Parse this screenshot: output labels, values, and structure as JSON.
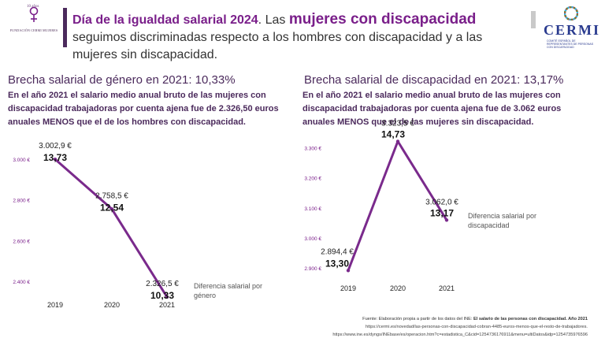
{
  "header": {
    "part1": "Día de la igualdad salarial 2024",
    "part2": ". Las ",
    "part3": "mujeres con discapacidad",
    "part4": " seguimos discriminadas respecto a los hombres con discapacidad y a las mujeres sin discapacidad.",
    "left_logo_text": "FUNDACIÓN CERMI MUJERES",
    "left_logo_years": "10 años",
    "right_logo_name": "CERMI",
    "right_logo_sub": "COMITÉ ESPAÑOL DE REPRESENTANTES DE PERSONAS CON DISCAPACIDAD"
  },
  "panels": [
    {
      "title": "Brecha salarial de género en 2021: 10,33%",
      "description": "En el año 2021 el salario medio anual bruto de las mujeres con discapacidad trabajadoras por cuenta ajena fue de 2.326,50 euros anuales MENOS que el de los hombres con discapacidad.",
      "legend": "Diferencia salarial por género"
    },
    {
      "title": "Brecha salarial de discapacidad en 2021: 13,17%",
      "description": "En el año 2021 el salario medio anual bruto de las mujeres con discapacidad trabajadoras por cuenta ajena fue de 3.062 euros anuales MENOS que el de las mujeres sin discapacidad.",
      "legend": "Diferencia salarial por discapacidad"
    }
  ],
  "chart_data": [
    {
      "type": "line",
      "title": "Brecha salarial de género en 2021: 10,33%",
      "categories": [
        "2019",
        "2020",
        "2021"
      ],
      "series": [
        {
          "name": "Diferencia salarial por género",
          "values": [
            3002.9,
            2758.5,
            2326.5
          ]
        }
      ],
      "value_labels": [
        "3.002,9 €",
        "2.758,5 €",
        "2.326,5 €"
      ],
      "pct_labels": [
        "13,73",
        "12,54",
        "10,33"
      ],
      "yticks": [
        3000,
        2800,
        2600,
        2400
      ],
      "ytick_labels": [
        "3.000 €",
        "2.800 €",
        "2.600 €",
        "2.400 €"
      ],
      "ylim": [
        2330,
        3050
      ],
      "color": "#7a2a8c"
    },
    {
      "type": "line",
      "title": "Brecha salarial de discapacidad en 2021: 13,17%",
      "categories": [
        "2019",
        "2020",
        "2021"
      ],
      "series": [
        {
          "name": "Diferencia salarial por discapacidad",
          "values": [
            2894.4,
            3323.5,
            3062.0
          ]
        }
      ],
      "value_labels": [
        "2.894,4 €",
        "3.323,5 €",
        "3.062,0 €"
      ],
      "pct_labels": [
        "13,30",
        "14,73",
        "13,17"
      ],
      "yticks": [
        3300,
        3200,
        3100,
        3000,
        2900
      ],
      "ytick_labels": [
        "3.300 €",
        "3.200 €",
        "3.100 €",
        "3.000 €",
        "2.900 €"
      ],
      "ylim": [
        2890,
        3335
      ],
      "color": "#7a2a8c"
    }
  ],
  "source": {
    "prefix": "Fuente: Elaboración propia a partir de los datos  del INE: ",
    "title": "El salario de las personas con discapacidad. Año 2021",
    "url1": "https://cermi.es/novedad/las-personas-con-discapacidad-cobran-4485-euros-menos-que-el-resto-de-trabajadores.",
    "url2": "https://www.ine.es/dyngs/INEbase/es/operacion.htm?c=estadistica_C&cid=1254736176911&menu=ultiDatos&idp=1254735976596"
  },
  "colors": {
    "accent": "#7a1f8a",
    "dark": "#4b2a5c",
    "cermi_blue": "#2a3b8f"
  }
}
